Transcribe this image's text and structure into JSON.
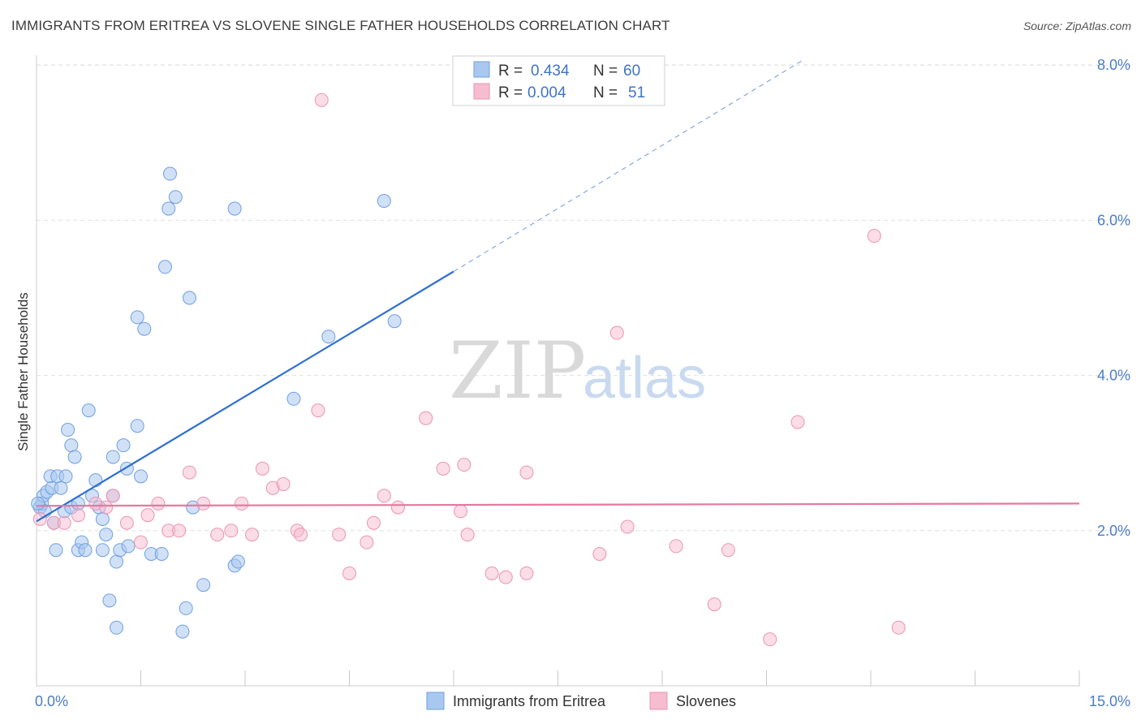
{
  "title": "IMMIGRANTS FROM ERITREA VS SLOVENE SINGLE FATHER HOUSEHOLDS CORRELATION CHART",
  "source": "Source: ZipAtlas.com",
  "watermark": {
    "zip": "ZIP",
    "atlas": "atlas"
  },
  "legend_top": [
    {
      "r_label": "R = ",
      "r_value": "0.434",
      "n_label": "N = ",
      "n_value": "60"
    },
    {
      "r_label": "R = ",
      "r_value": "0.004",
      "n_label": "N = ",
      "n_value": "51"
    }
  ],
  "legend_bottom": [
    "Immigrants from Eritrea",
    "Slovenes"
  ],
  "colors": {
    "blue_fill": "#a9c8f0",
    "blue_stroke": "#6f9fe0",
    "blue_line": "#2f6fd0",
    "pink_fill": "#f6bcd0",
    "pink_stroke": "#eb94b2",
    "pink_line": "#e8779f",
    "axis_text": "#4a7cc9"
  },
  "chart_data": {
    "type": "scatter",
    "title": "IMMIGRANTS FROM ERITREA VS SLOVENE SINGLE FATHER HOUSEHOLDS CORRELATION CHART",
    "xlabel": "",
    "ylabel": "Single Father Households",
    "xlim": [
      0,
      15
    ],
    "ylim": [
      0,
      8.2
    ],
    "x_tick_labels": [
      "0.0%",
      "15.0%"
    ],
    "y_tick_labels": [
      "2.0%",
      "4.0%",
      "6.0%",
      "8.0%"
    ],
    "y_ticks": [
      2,
      4,
      6,
      8
    ],
    "grid": "horizontal dashed",
    "legend_position": "top-center",
    "series": [
      {
        "name": "Immigrants from Eritrea",
        "r": 0.434,
        "n": 60,
        "trend": {
          "x": [
            0.0,
            6.0
          ],
          "y": [
            2.12,
            5.34
          ],
          "dashed_extension_to": [
            11.0,
            8.05
          ]
        },
        "points": [
          [
            0.05,
            2.3
          ],
          [
            0.08,
            2.35
          ],
          [
            0.1,
            2.45
          ],
          [
            0.12,
            2.25
          ],
          [
            0.15,
            2.5
          ],
          [
            0.2,
            2.7
          ],
          [
            0.22,
            2.55
          ],
          [
            0.25,
            2.1
          ],
          [
            0.28,
            1.75
          ],
          [
            0.3,
            2.7
          ],
          [
            0.35,
            2.55
          ],
          [
            0.4,
            2.25
          ],
          [
            0.42,
            2.7
          ],
          [
            0.45,
            3.3
          ],
          [
            0.5,
            3.1
          ],
          [
            0.5,
            2.3
          ],
          [
            0.55,
            2.95
          ],
          [
            0.6,
            2.35
          ],
          [
            0.6,
            1.75
          ],
          [
            0.65,
            1.85
          ],
          [
            0.7,
            1.75
          ],
          [
            0.75,
            3.55
          ],
          [
            0.8,
            2.45
          ],
          [
            0.85,
            2.65
          ],
          [
            0.9,
            2.3
          ],
          [
            0.95,
            2.15
          ],
          [
            0.95,
            1.75
          ],
          [
            1.0,
            1.95
          ],
          [
            1.05,
            1.1
          ],
          [
            1.1,
            2.45
          ],
          [
            1.1,
            2.95
          ],
          [
            1.15,
            0.75
          ],
          [
            1.15,
            1.6
          ],
          [
            1.2,
            1.75
          ],
          [
            1.25,
            3.1
          ],
          [
            1.3,
            2.8
          ],
          [
            1.32,
            1.8
          ],
          [
            1.45,
            4.75
          ],
          [
            1.45,
            3.35
          ],
          [
            1.5,
            2.7
          ],
          [
            1.55,
            4.6
          ],
          [
            1.65,
            1.7
          ],
          [
            1.8,
            1.7
          ],
          [
            1.85,
            5.4
          ],
          [
            1.9,
            6.15
          ],
          [
            1.92,
            6.6
          ],
          [
            2.0,
            6.3
          ],
          [
            2.1,
            0.7
          ],
          [
            2.15,
            1.0
          ],
          [
            2.2,
            5.0
          ],
          [
            2.25,
            2.3
          ],
          [
            2.4,
            1.3
          ],
          [
            2.85,
            6.15
          ],
          [
            2.85,
            1.55
          ],
          [
            2.9,
            1.6
          ],
          [
            3.7,
            3.7
          ],
          [
            4.2,
            4.5
          ],
          [
            5.0,
            6.25
          ],
          [
            5.15,
            4.7
          ],
          [
            0.02,
            2.35
          ]
        ]
      },
      {
        "name": "Slovenes",
        "r": 0.004,
        "n": 51,
        "trend": {
          "x": [
            0.0,
            15.0
          ],
          "y": [
            2.32,
            2.35
          ]
        },
        "points": [
          [
            0.05,
            2.15
          ],
          [
            0.25,
            2.1
          ],
          [
            0.4,
            2.1
          ],
          [
            0.6,
            2.2
          ],
          [
            0.85,
            2.35
          ],
          [
            1.0,
            2.3
          ],
          [
            1.1,
            2.45
          ],
          [
            1.3,
            2.1
          ],
          [
            1.5,
            1.85
          ],
          [
            1.6,
            2.2
          ],
          [
            1.75,
            2.35
          ],
          [
            1.9,
            2.0
          ],
          [
            2.05,
            2.0
          ],
          [
            2.2,
            2.75
          ],
          [
            2.4,
            2.35
          ],
          [
            2.6,
            1.95
          ],
          [
            2.8,
            2.0
          ],
          [
            2.95,
            2.35
          ],
          [
            3.1,
            1.95
          ],
          [
            3.25,
            2.8
          ],
          [
            3.4,
            2.55
          ],
          [
            3.55,
            2.6
          ],
          [
            3.75,
            2.0
          ],
          [
            3.8,
            1.95
          ],
          [
            4.05,
            3.55
          ],
          [
            4.1,
            7.55
          ],
          [
            4.35,
            1.95
          ],
          [
            4.5,
            1.45
          ],
          [
            4.75,
            1.85
          ],
          [
            4.85,
            2.1
          ],
          [
            5.0,
            2.45
          ],
          [
            5.2,
            2.3
          ],
          [
            5.6,
            3.45
          ],
          [
            5.85,
            2.8
          ],
          [
            6.1,
            2.25
          ],
          [
            6.15,
            2.85
          ],
          [
            6.2,
            1.95
          ],
          [
            6.55,
            1.45
          ],
          [
            6.75,
            1.4
          ],
          [
            7.05,
            2.75
          ],
          [
            7.05,
            1.45
          ],
          [
            8.1,
            1.7
          ],
          [
            8.35,
            4.55
          ],
          [
            8.5,
            2.05
          ],
          [
            9.2,
            1.8
          ],
          [
            9.75,
            1.05
          ],
          [
            9.95,
            1.75
          ],
          [
            10.55,
            0.6
          ],
          [
            10.95,
            3.4
          ],
          [
            12.05,
            5.8
          ],
          [
            12.4,
            0.75
          ]
        ]
      }
    ]
  }
}
